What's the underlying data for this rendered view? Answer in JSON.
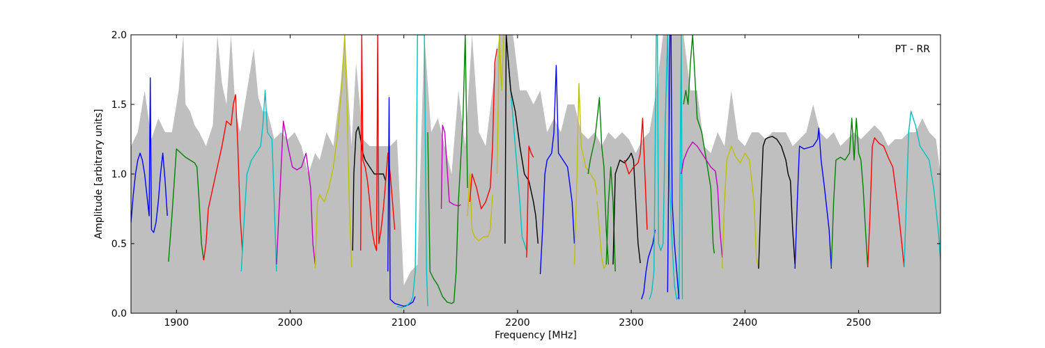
{
  "chart_data": {
    "type": "line",
    "title": "",
    "xlabel": "Frequency [MHz]",
    "ylabel": "Amplitude [arbitrary units]",
    "annotation": "PT - RR",
    "xlim": [
      1860,
      2572
    ],
    "ylim": [
      0.0,
      2.0
    ],
    "xticks": [
      1900,
      2000,
      2100,
      2200,
      2300,
      2400,
      2500
    ],
    "yticks": [
      0.0,
      0.5,
      1.0,
      1.5,
      2.0
    ],
    "ytick_labels": [
      "0.0",
      "0.5",
      "1.0",
      "1.5",
      "2.0"
    ],
    "grid": false,
    "envelope": {
      "color": "#bfbfbf",
      "x": [
        1860,
        1866,
        1872,
        1878,
        1884,
        1890,
        1896,
        1902,
        1906,
        1908,
        1912,
        1916,
        1920,
        1926,
        1932,
        1936,
        1940,
        1944,
        1948,
        1952,
        1956,
        1962,
        1968,
        1972,
        1976,
        1980,
        1986,
        1992,
        1998,
        2004,
        2010,
        2016,
        2022,
        2026,
        2032,
        2038,
        2044,
        2048,
        2054,
        2058,
        2064,
        2070,
        2076,
        2082,
        2088,
        2094,
        2100,
        2106,
        2112,
        2118,
        2124,
        2130,
        2136,
        2142,
        2148,
        2154,
        2160,
        2166,
        2172,
        2178,
        2184,
        2190,
        2196,
        2202,
        2208,
        2214,
        2220,
        2226,
        2232,
        2238,
        2244,
        2250,
        2256,
        2262,
        2268,
        2274,
        2280,
        2286,
        2292,
        2298,
        2304,
        2310,
        2316,
        2322,
        2328,
        2334,
        2340,
        2346,
        2352,
        2358,
        2364,
        2370,
        2376,
        2382,
        2388,
        2394,
        2400,
        2406,
        2412,
        2418,
        2424,
        2430,
        2436,
        2442,
        2448,
        2454,
        2460,
        2466,
        2472,
        2478,
        2484,
        2490,
        2496,
        2502,
        2508,
        2514,
        2520,
        2526,
        2532,
        2538,
        2544,
        2550,
        2556,
        2562,
        2568,
        2572
      ],
      "y": [
        1.2,
        1.3,
        1.6,
        1.25,
        1.4,
        1.3,
        1.3,
        1.6,
        2.0,
        1.5,
        1.45,
        1.35,
        1.3,
        1.2,
        1.35,
        2.0,
        1.65,
        1.5,
        2.0,
        1.45,
        1.3,
        1.6,
        1.9,
        1.55,
        1.45,
        1.45,
        1.25,
        1.3,
        1.25,
        1.3,
        1.2,
        1.0,
        1.15,
        1.1,
        1.3,
        1.2,
        1.6,
        2.0,
        1.2,
        1.8,
        1.25,
        1.2,
        1.2,
        1.2,
        1.2,
        1.25,
        0.2,
        0.3,
        0.35,
        2.0,
        1.3,
        1.4,
        1.2,
        1.0,
        1.6,
        1.2,
        2.0,
        1.3,
        1.2,
        1.6,
        2.0,
        2.0,
        2.0,
        1.6,
        1.6,
        1.5,
        1.6,
        1.3,
        1.4,
        1.3,
        1.5,
        1.5,
        1.3,
        1.25,
        1.3,
        1.2,
        1.3,
        1.25,
        1.3,
        1.25,
        1.15,
        1.25,
        1.3,
        1.6,
        2.0,
        2.0,
        2.0,
        2.0,
        1.6,
        1.6,
        1.2,
        1.15,
        1.3,
        1.2,
        1.6,
        1.25,
        1.2,
        1.3,
        1.3,
        1.25,
        1.3,
        1.3,
        1.3,
        1.2,
        1.25,
        1.3,
        1.5,
        1.3,
        1.25,
        1.3,
        1.2,
        1.25,
        1.3,
        1.25,
        1.3,
        1.35,
        1.3,
        1.2,
        1.25,
        1.25,
        1.3,
        1.3,
        1.4,
        1.3,
        1.25,
        1.0
      ]
    },
    "series": [
      {
        "color": "#0000ff",
        "x": [
          1860,
          1862,
          1864,
          1866,
          1868,
          1870,
          1872,
          1874,
          1876,
          1877,
          1878,
          1880,
          1882,
          1884,
          1886,
          1888,
          1890,
          1892
        ],
        "y": [
          0.65,
          0.85,
          1.0,
          1.1,
          1.15,
          1.1,
          1.0,
          0.85,
          0.7,
          1.69,
          0.6,
          0.58,
          0.65,
          0.8,
          1.0,
          1.15,
          0.95,
          0.7
        ]
      },
      {
        "color": "#008000",
        "x": [
          1893,
          1896,
          1900,
          1904,
          1908,
          1912,
          1916,
          1918,
          1920,
          1922,
          1924
        ],
        "y": [
          0.37,
          0.7,
          1.18,
          1.15,
          1.12,
          1.1,
          1.08,
          1.05,
          0.8,
          0.5,
          0.38
        ]
      },
      {
        "color": "#ff0000",
        "x": [
          1924,
          1926,
          1928,
          1932,
          1936,
          1940,
          1944,
          1948,
          1950,
          1952,
          1954,
          1956,
          1958
        ],
        "y": [
          0.38,
          0.5,
          0.75,
          0.9,
          1.05,
          1.2,
          1.38,
          1.35,
          1.5,
          1.57,
          1.2,
          0.7,
          0.45
        ]
      },
      {
        "color": "#00bfbf",
        "x": [
          1957,
          1959,
          1962,
          1966,
          1970,
          1974,
          1976,
          1978,
          1980,
          1984,
          1986,
          1988
        ],
        "y": [
          0.3,
          0.6,
          1.0,
          1.1,
          1.15,
          1.2,
          1.35,
          1.6,
          1.3,
          1.25,
          0.8,
          0.3
        ]
      },
      {
        "color": "#bf00bf",
        "x": [
          1988,
          1990,
          1994,
          1998,
          2002,
          2006,
          2010,
          2014,
          2018,
          2020,
          2022
        ],
        "y": [
          0.35,
          0.7,
          1.38,
          1.2,
          1.05,
          1.03,
          1.05,
          1.15,
          0.9,
          0.5,
          0.35
        ]
      },
      {
        "color": "#bfbf00",
        "x": [
          2022,
          2024,
          2026,
          2030,
          2034,
          2038,
          2042,
          2046,
          2048,
          2050,
          2052,
          2054
        ],
        "y": [
          0.32,
          0.8,
          0.85,
          0.8,
          0.9,
          1.05,
          1.3,
          1.7,
          2.0,
          1.5,
          0.8,
          0.33
        ]
      },
      {
        "color": "#000000",
        "x": [
          2055,
          2056,
          2058,
          2060,
          2062,
          2064,
          2066,
          2070,
          2074,
          2078,
          2082,
          2084
        ],
        "y": [
          0.45,
          1.0,
          1.3,
          1.34,
          1.25,
          1.15,
          1.1,
          1.05,
          1.0,
          1.0,
          1.0,
          0.95
        ]
      },
      {
        "color": "#ff0000",
        "x": [
          2062,
          2063,
          2064,
          2066,
          2068,
          2070,
          2072,
          2074,
          2076,
          2077,
          2078,
          2080,
          2082,
          2084,
          2086,
          2088,
          2090,
          2092
        ],
        "y": [
          0.45,
          2.0,
          1.1,
          1.05,
          0.95,
          0.8,
          0.6,
          0.5,
          0.45,
          2.0,
          0.5,
          0.6,
          0.75,
          0.95,
          1.15,
          1.0,
          0.8,
          0.6
        ]
      },
      {
        "color": "#0000ff",
        "x": [
          2086,
          2087,
          2088,
          2092,
          2096,
          2100,
          2104,
          2108,
          2110
        ],
        "y": [
          0.3,
          1.55,
          0.1,
          0.07,
          0.06,
          0.05,
          0.06,
          0.08,
          0.12
        ]
      },
      {
        "color": "#00bfbf",
        "x": [
          2094,
          2098,
          2102,
          2106,
          2108,
          2110,
          2111,
          2112,
          2118,
          2120,
          2121
        ],
        "y": [
          0.05,
          0.04,
          0.05,
          0.08,
          0.12,
          0.3,
          1.0,
          2.0,
          2.0,
          0.3,
          0.05
        ]
      },
      {
        "color": "#008000",
        "x": [
          2121,
          2123,
          2126,
          2130,
          2134,
          2138,
          2142,
          2144,
          2146,
          2148
        ],
        "y": [
          1.3,
          0.3,
          0.25,
          0.2,
          0.12,
          0.08,
          0.07,
          0.08,
          0.3,
          0.8
        ]
      },
      {
        "color": "#bf00bf",
        "x": [
          2133,
          2134,
          2136,
          2138,
          2140,
          2144,
          2148,
          2150
        ],
        "y": [
          0.75,
          1.35,
          1.3,
          1.05,
          0.8,
          0.78,
          0.77,
          0.78
        ]
      },
      {
        "color": "#008000",
        "x": [
          2148,
          2150,
          2152,
          2154,
          2156
        ],
        "y": [
          0.8,
          1.1,
          1.4,
          2.0,
          0.9
        ]
      },
      {
        "color": "#bfbf00",
        "x": [
          2156,
          2158,
          2160,
          2162,
          2166,
          2170,
          2174,
          2176,
          2178
        ],
        "y": [
          0.7,
          1.0,
          0.6,
          0.55,
          0.52,
          0.55,
          0.55,
          0.6,
          0.85
        ]
      },
      {
        "color": "#ff0000",
        "x": [
          2158,
          2160,
          2164,
          2168,
          2172,
          2176,
          2178,
          2180,
          2182
        ],
        "y": [
          0.8,
          1.0,
          0.9,
          0.75,
          0.8,
          0.9,
          1.2,
          1.8,
          1.9
        ]
      },
      {
        "color": "#bfbf00",
        "x": [
          2182,
          2184,
          2186,
          2188,
          2189
        ],
        "y": [
          1.0,
          2.0,
          1.6,
          2.0,
          2.0
        ]
      },
      {
        "color": "#00bfbf",
        "x": [
          2190,
          2192,
          2194,
          2196,
          2198,
          2200,
          2202,
          2204,
          2206,
          2208
        ],
        "y": [
          2.0,
          1.8,
          1.6,
          1.4,
          1.2,
          1.0,
          0.8,
          0.55,
          0.5,
          0.45
        ]
      },
      {
        "color": "#000000",
        "x": [
          2189,
          2190,
          2192,
          2194,
          2198,
          2202,
          2206,
          2210,
          2214,
          2216,
          2218
        ],
        "y": [
          0.5,
          2.0,
          1.8,
          1.6,
          1.45,
          1.2,
          1.0,
          0.95,
          0.8,
          0.7,
          0.5
        ]
      },
      {
        "color": "#ff0000",
        "x": [
          2208,
          2210,
          2212,
          2214
        ],
        "y": [
          0.4,
          1.2,
          1.15,
          1.12
        ]
      },
      {
        "color": "#0000ff",
        "x": [
          2220,
          2222,
          2224,
          2226,
          2230,
          2232,
          2234,
          2236,
          2240,
          2244,
          2248,
          2250
        ],
        "y": [
          0.28,
          0.6,
          1.0,
          1.1,
          1.15,
          1.3,
          1.78,
          1.15,
          1.1,
          1.05,
          0.8,
          0.5
        ]
      },
      {
        "color": "#bfbf00",
        "x": [
          2250,
          2252,
          2254,
          2256,
          2260,
          2264,
          2268,
          2270
        ],
        "y": [
          0.35,
          0.9,
          1.65,
          1.2,
          1.05,
          1.0,
          0.95,
          0.85
        ]
      },
      {
        "color": "#008000",
        "x": [
          2262,
          2264,
          2268,
          2272,
          2274,
          2276,
          2278,
          2280
        ],
        "y": [
          1.0,
          1.1,
          1.25,
          1.55,
          1.2,
          1.05,
          0.6,
          0.35
        ]
      },
      {
        "color": "#bfbf00",
        "x": [
          2270,
          2272,
          2274,
          2276,
          2278
        ],
        "y": [
          0.8,
          0.6,
          0.4,
          0.32,
          0.35
        ]
      },
      {
        "color": "#008000",
        "x": [
          2278,
          2280,
          2282,
          2284,
          2286
        ],
        "y": [
          0.35,
          0.8,
          1.05,
          0.8,
          0.3
        ]
      },
      {
        "color": "#000000",
        "x": [
          2284,
          2286,
          2290,
          2294,
          2298,
          2300,
          2302,
          2304,
          2306,
          2308
        ],
        "y": [
          0.35,
          1.0,
          1.1,
          1.08,
          1.12,
          1.15,
          1.1,
          0.8,
          0.5,
          0.36
        ]
      },
      {
        "color": "#ff0000",
        "x": [
          2294,
          2298,
          2302,
          2306,
          2308,
          2310,
          2312,
          2314
        ],
        "y": [
          1.1,
          1.0,
          1.05,
          1.08,
          1.15,
          1.4,
          1.0,
          0.6
        ]
      },
      {
        "color": "#0000ff",
        "x": [
          2309,
          2311,
          2313,
          2315,
          2317,
          2319,
          2320,
          2321
        ],
        "y": [
          0.1,
          0.15,
          0.3,
          0.4,
          0.45,
          0.5,
          0.55,
          0.6
        ]
      },
      {
        "color": "#00bfbf",
        "x": [
          2316,
          2318,
          2320,
          2322,
          2323,
          2324,
          2326,
          2328,
          2330,
          2332,
          2334,
          2336,
          2338,
          2340,
          2342,
          2344,
          2345
        ],
        "y": [
          0.1,
          0.15,
          0.3,
          2.0,
          2.0,
          0.5,
          0.45,
          0.5,
          1.4,
          2.0,
          0.9,
          0.5,
          0.2,
          0.1,
          0.12,
          2.0,
          0.1
        ]
      },
      {
        "color": "#0000ff",
        "x": [
          2332,
          2334,
          2335,
          2336,
          2338,
          2340,
          2342
        ],
        "y": [
          0.15,
          2.0,
          2.0,
          0.8,
          0.5,
          0.3,
          0.1
        ]
      },
      {
        "color": "#008000",
        "x": [
          2346,
          2348,
          2350,
          2352,
          2354,
          2358,
          2362,
          2366,
          2368,
          2370,
          2372,
          2373
        ],
        "y": [
          1.5,
          1.6,
          1.5,
          1.8,
          2.0,
          1.4,
          1.3,
          1.1,
          1.0,
          0.9,
          0.5,
          0.43
        ]
      },
      {
        "color": "#bf00bf",
        "x": [
          2344,
          2346,
          2350,
          2354,
          2358,
          2362,
          2366,
          2370,
          2374,
          2376,
          2378,
          2380
        ],
        "y": [
          1.0,
          1.1,
          1.18,
          1.23,
          1.2,
          1.15,
          1.1,
          1.05,
          1.02,
          0.9,
          0.6,
          0.4
        ]
      },
      {
        "color": "#bfbf00",
        "x": [
          2380,
          2382,
          2384,
          2388,
          2392,
          2396,
          2400,
          2404,
          2408,
          2410,
          2412
        ],
        "y": [
          0.32,
          0.8,
          1.1,
          1.2,
          1.12,
          1.08,
          1.15,
          1.1,
          0.8,
          0.4,
          0.32
        ]
      },
      {
        "color": "#000000",
        "x": [
          2412,
          2414,
          2416,
          2418,
          2420,
          2424,
          2428,
          2432,
          2436,
          2438,
          2440,
          2442,
          2444
        ],
        "y": [
          0.32,
          0.8,
          1.2,
          1.25,
          1.26,
          1.27,
          1.25,
          1.2,
          1.1,
          1.0,
          0.95,
          0.6,
          0.35
        ]
      },
      {
        "color": "#0000ff",
        "x": [
          2444,
          2446,
          2448,
          2452,
          2456,
          2460,
          2464,
          2465,
          2467,
          2470,
          2474,
          2476
        ],
        "y": [
          0.32,
          0.8,
          1.2,
          1.18,
          1.19,
          1.2,
          1.25,
          1.33,
          1.1,
          0.9,
          0.6,
          0.32
        ]
      },
      {
        "color": "#008000",
        "x": [
          2476,
          2478,
          2480,
          2484,
          2488,
          2492,
          2494,
          2496,
          2498,
          2500,
          2502,
          2504,
          2506,
          2508
        ],
        "y": [
          0.33,
          0.8,
          1.1,
          1.12,
          1.1,
          1.15,
          1.4,
          1.1,
          1.4,
          1.15,
          1.1,
          0.9,
          0.6,
          0.33
        ]
      },
      {
        "color": "#ff0000",
        "x": [
          2508,
          2510,
          2512,
          2514,
          2518,
          2522,
          2526,
          2530,
          2534,
          2538,
          2540
        ],
        "y": [
          0.33,
          0.7,
          1.2,
          1.26,
          1.22,
          1.2,
          1.12,
          1.05,
          0.8,
          0.5,
          0.33
        ]
      },
      {
        "color": "#00bfbf",
        "x": [
          2540,
          2542,
          2544,
          2546,
          2548,
          2550,
          2554,
          2558,
          2562,
          2566,
          2570,
          2572
        ],
        "y": [
          0.33,
          0.8,
          1.3,
          1.45,
          1.4,
          1.35,
          1.2,
          1.15,
          1.1,
          0.9,
          0.6,
          0.38
        ]
      }
    ]
  }
}
